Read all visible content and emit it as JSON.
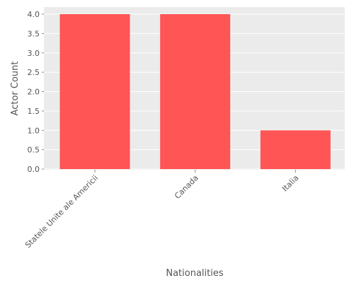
{
  "chart_data": {
    "type": "bar",
    "categories": [
      "Statele Unite ale Americii",
      "Canada",
      "Italia"
    ],
    "values": [
      4,
      4,
      1
    ],
    "xlabel": "Nationalities",
    "ylabel": "Actor Count",
    "ylim": [
      0,
      4.15
    ],
    "yticks": [
      "0.0",
      "0.5",
      "1.0",
      "1.5",
      "2.0",
      "2.5",
      "3.0",
      "3.5",
      "4.0"
    ],
    "grid": true,
    "colors": {
      "bar": "#ff5555",
      "panel": "#ebebeb",
      "grid": "#ffffff",
      "text": "#555555"
    }
  }
}
